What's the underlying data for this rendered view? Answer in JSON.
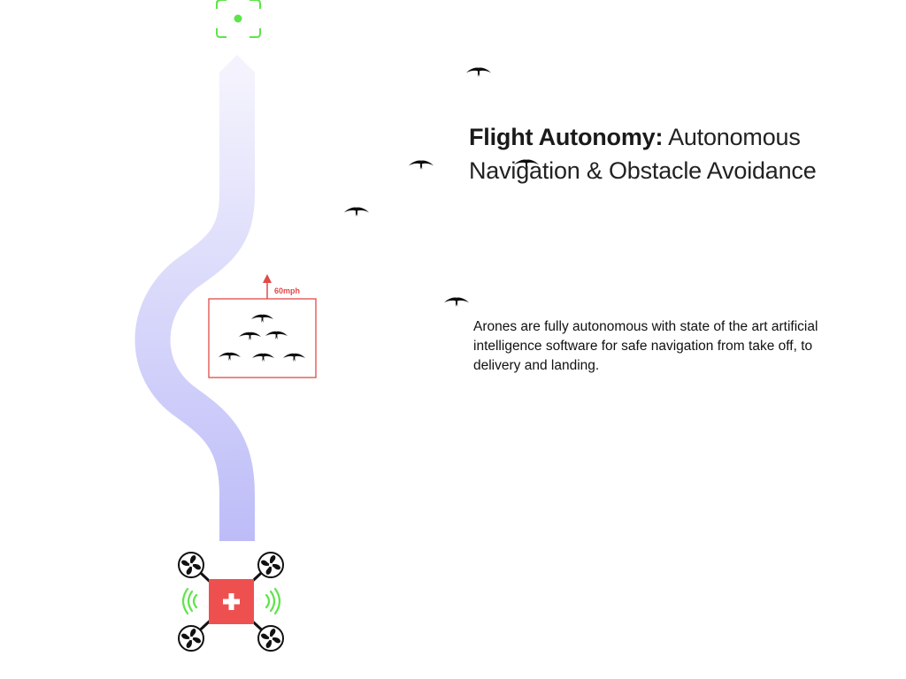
{
  "heading": {
    "bold": "Flight Autonomy:",
    "rest": "Autonomous Navigation & Obstacle Avoidance"
  },
  "description": "Arones are fully autonomous with state of the art artificial intelligence software for safe navigation from take off, to delivery and landing.",
  "obstacle_box": {
    "speed_label": "60mph"
  },
  "colors": {
    "path_top": "#f4f3fd",
    "path_bottom": "#bdbcf8",
    "target": "#5ee44a",
    "drone_body": "#ee5050",
    "signal": "#5ee44a",
    "obstacle_box": "#e04a48"
  },
  "icons": {
    "target": "target-reticle-icon",
    "bird": "bird-icon",
    "drone": "drone-icon",
    "propeller": "propeller-icon",
    "signal": "signal-wave-icon",
    "arrow": "arrow-up-icon"
  }
}
